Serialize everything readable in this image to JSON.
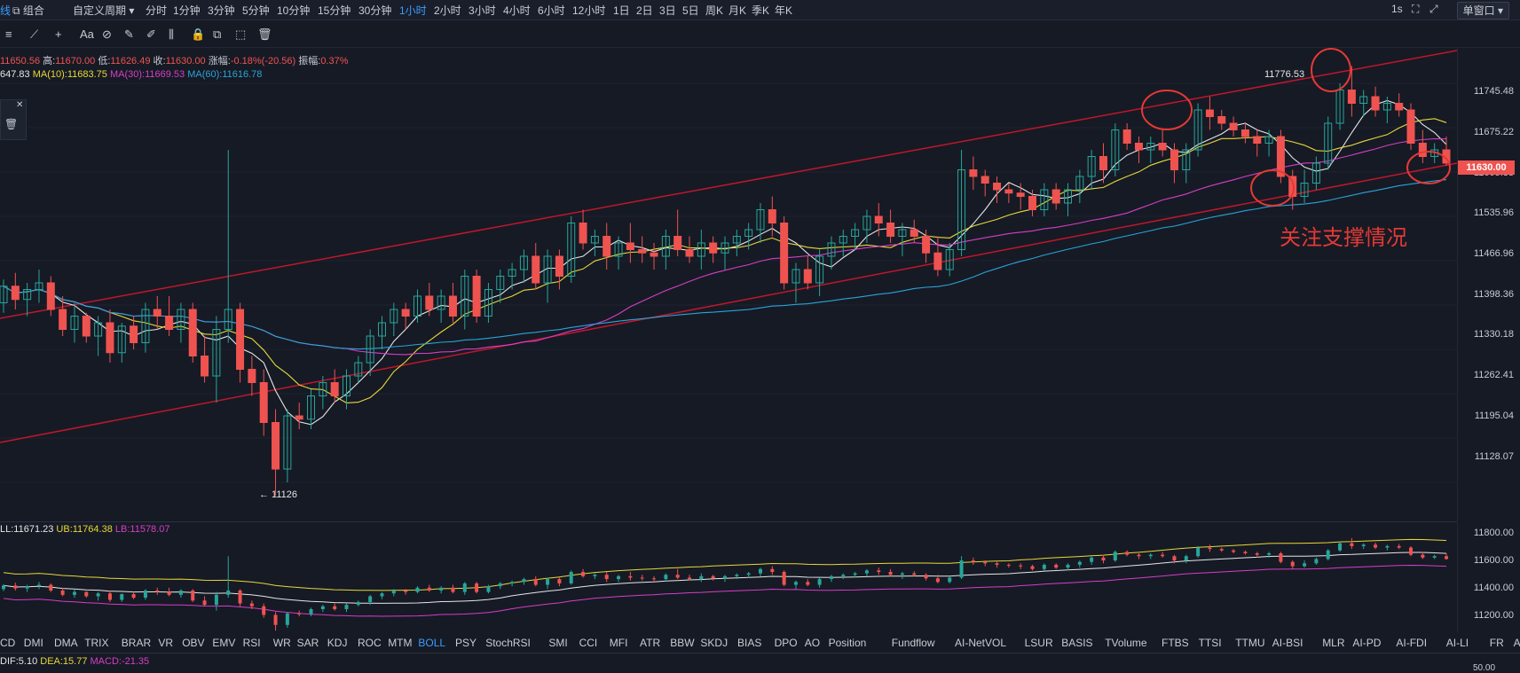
{
  "toolbar": {
    "left": [
      "线",
      "组合"
    ],
    "period_menu": "自定义周期",
    "periods": [
      "分时",
      "1分钟",
      "3分钟",
      "5分钟",
      "10分钟",
      "15分钟",
      "30分钟",
      "1小时",
      "2小时",
      "3小时",
      "4小时",
      "6小时",
      "12小时",
      "1日",
      "2日",
      "3日",
      "5日",
      "周K",
      "月K",
      "季K",
      "年K"
    ],
    "active_period": "1小时",
    "interval": "1s",
    "window_button": "单窗口"
  },
  "drawing_tools": [
    "≡",
    "⟋",
    "+",
    "Aa",
    "⊘",
    "✎",
    "✐",
    "⫼",
    "🔒",
    "⧉",
    "⬚",
    "🗑"
  ],
  "ohlc": {
    "open": "11650.56",
    "high_label": "高:",
    "high": "11670.00",
    "low_label": "低:",
    "low": "11626.49",
    "close_label": "收:",
    "close": "11630.00",
    "change_label": "涨幅:",
    "change": "-0.18%(-20.56)",
    "amp_label": "振幅:",
    "amp": "0.37%"
  },
  "ma": {
    "ma5": "647.83",
    "ma10": "MA(10):11683.75",
    "ma30": "MA(30):11669.53",
    "ma60": "MA(60):11616.78"
  },
  "annotations": {
    "high_label": "11776.53",
    "low_label": "← 11126",
    "note": "关注支撑情况"
  },
  "price_axis": {
    "ticks": [
      "11745.48",
      "11675.22",
      "11605.38",
      "11535.96",
      "11466.96",
      "11398.36",
      "11330.18",
      "11262.41",
      "11195.04",
      "11128.07"
    ],
    "current": "11630.00"
  },
  "boll": {
    "mid": "LL:11671.23",
    "ub": "UB:11764.38",
    "lb": "LB:11578.07",
    "ticks": [
      "11800.00",
      "11600.00",
      "11400.00",
      "11200.00"
    ]
  },
  "indicators": [
    "CD",
    "DMI",
    "DMA",
    "TRIX",
    "BRAR",
    "VR",
    "OBV",
    "EMV",
    "RSI",
    "WR",
    "SAR",
    "KDJ",
    "ROC",
    "MTM",
    "BOLL",
    "PSY",
    "StochRSI",
    "SMI",
    "CCI",
    "MFI",
    "ATR",
    "BBW",
    "SKDJ",
    "BIAS",
    "DPO",
    "AO",
    "Position",
    "Fundflow",
    "AI-NetVOL",
    "LSUR",
    "BASIS",
    "TVolume",
    "FTBS",
    "TTSI",
    "TTMU",
    "AI-BSI",
    "MLR",
    "AI-PD",
    "AI-FDI",
    "AI-LI",
    "FR",
    "AI-BST"
  ],
  "active_indicator": "BOLL",
  "macd": {
    "dif": "DIF:5.10",
    "dea": "DEA:15.77",
    "macd": "MACD:-21.35",
    "tick": "50.00"
  },
  "colors": {
    "up": "#26a69a",
    "down": "#ef5350",
    "ma5": "#e6e6e6",
    "ma10": "#e8d839",
    "ma30": "#d63ec6",
    "ma60": "#2aa4d8",
    "trend": "#c0172b",
    "accent": "#3b9cff"
  },
  "chart_data": {
    "type": "candlestick",
    "ylim": [
      11100,
      11800
    ],
    "candles": [
      [
        11420,
        11455,
        11405,
        11445
      ],
      [
        11445,
        11465,
        11410,
        11425
      ],
      [
        11425,
        11450,
        11400,
        11440
      ],
      [
        11440,
        11470,
        11420,
        11450
      ],
      [
        11450,
        11460,
        11400,
        11410
      ],
      [
        11410,
        11430,
        11370,
        11380
      ],
      [
        11380,
        11420,
        11360,
        11400
      ],
      [
        11400,
        11405,
        11360,
        11370
      ],
      [
        11370,
        11400,
        11340,
        11390
      ],
      [
        11390,
        11410,
        11330,
        11345
      ],
      [
        11345,
        11390,
        11330,
        11385
      ],
      [
        11385,
        11400,
        11350,
        11360
      ],
      [
        11360,
        11420,
        11345,
        11410
      ],
      [
        11410,
        11430,
        11380,
        11400
      ],
      [
        11400,
        11430,
        11370,
        11380
      ],
      [
        11380,
        11420,
        11360,
        11410
      ],
      [
        11410,
        11420,
        11330,
        11340
      ],
      [
        11340,
        11370,
        11300,
        11310
      ],
      [
        11310,
        11400,
        11270,
        11380
      ],
      [
        11380,
        11650,
        11360,
        11410
      ],
      [
        11410,
        11420,
        11300,
        11320
      ],
      [
        11320,
        11340,
        11280,
        11300
      ],
      [
        11300,
        11320,
        11220,
        11240
      ],
      [
        11240,
        11260,
        11130,
        11170
      ],
      [
        11170,
        11260,
        11150,
        11250
      ],
      [
        11250,
        11270,
        11230,
        11245
      ],
      [
        11245,
        11290,
        11230,
        11280
      ],
      [
        11280,
        11310,
        11260,
        11300
      ],
      [
        11300,
        11320,
        11270,
        11280
      ],
      [
        11280,
        11320,
        11260,
        11310
      ],
      [
        11310,
        11340,
        11300,
        11330
      ],
      [
        11330,
        11380,
        11310,
        11370
      ],
      [
        11370,
        11400,
        11350,
        11390
      ],
      [
        11390,
        11420,
        11370,
        11410
      ],
      [
        11410,
        11420,
        11380,
        11400
      ],
      [
        11400,
        11440,
        11390,
        11430
      ],
      [
        11430,
        11450,
        11400,
        11410
      ],
      [
        11410,
        11440,
        11390,
        11430
      ],
      [
        11430,
        11450,
        11390,
        11400
      ],
      [
        11400,
        11470,
        11380,
        11460
      ],
      [
        11460,
        11470,
        11390,
        11400
      ],
      [
        11400,
        11450,
        11390,
        11440
      ],
      [
        11440,
        11470,
        11420,
        11460
      ],
      [
        11460,
        11480,
        11440,
        11470
      ],
      [
        11470,
        11500,
        11450,
        11490
      ],
      [
        11490,
        11510,
        11440,
        11450
      ],
      [
        11450,
        11500,
        11420,
        11490
      ],
      [
        11490,
        11500,
        11440,
        11460
      ],
      [
        11460,
        11550,
        11450,
        11540
      ],
      [
        11540,
        11560,
        11500,
        11510
      ],
      [
        11510,
        11530,
        11490,
        11520
      ],
      [
        11520,
        11540,
        11470,
        11490
      ],
      [
        11490,
        11520,
        11470,
        11510
      ],
      [
        11510,
        11540,
        11480,
        11500
      ],
      [
        11500,
        11520,
        11480,
        11495
      ],
      [
        11495,
        11510,
        11470,
        11490
      ],
      [
        11490,
        11530,
        11470,
        11520
      ],
      [
        11520,
        11560,
        11490,
        11500
      ],
      [
        11500,
        11520,
        11480,
        11490
      ],
      [
        11490,
        11530,
        11470,
        11510
      ],
      [
        11510,
        11520,
        11480,
        11495
      ],
      [
        11495,
        11520,
        11470,
        11510
      ],
      [
        11510,
        11530,
        11490,
        11520
      ],
      [
        11520,
        11540,
        11500,
        11530
      ],
      [
        11530,
        11570,
        11510,
        11560
      ],
      [
        11560,
        11580,
        11520,
        11540
      ],
      [
        11540,
        11550,
        11440,
        11450
      ],
      [
        11450,
        11480,
        11420,
        11470
      ],
      [
        11470,
        11490,
        11440,
        11450
      ],
      [
        11450,
        11500,
        11430,
        11490
      ],
      [
        11490,
        11520,
        11470,
        11510
      ],
      [
        11510,
        11530,
        11490,
        11520
      ],
      [
        11520,
        11540,
        11500,
        11530
      ],
      [
        11530,
        11560,
        11510,
        11550
      ],
      [
        11550,
        11570,
        11520,
        11540
      ],
      [
        11540,
        11560,
        11510,
        11520
      ],
      [
        11520,
        11540,
        11490,
        11530
      ],
      [
        11530,
        11545,
        11510,
        11520
      ],
      [
        11520,
        11530,
        11480,
        11495
      ],
      [
        11495,
        11520,
        11460,
        11470
      ],
      [
        11470,
        11510,
        11460,
        11500
      ],
      [
        11500,
        11650,
        11490,
        11620
      ],
      [
        11620,
        11640,
        11590,
        11610
      ],
      [
        11610,
        11620,
        11580,
        11600
      ],
      [
        11600,
        11610,
        11570,
        11590
      ],
      [
        11590,
        11600,
        11570,
        11585
      ],
      [
        11585,
        11600,
        11560,
        11580
      ],
      [
        11580,
        11590,
        11550,
        11560
      ],
      [
        11560,
        11600,
        11550,
        11590
      ],
      [
        11590,
        11600,
        11560,
        11570
      ],
      [
        11570,
        11600,
        11550,
        11590
      ],
      [
        11590,
        11620,
        11570,
        11610
      ],
      [
        11610,
        11650,
        11590,
        11640
      ],
      [
        11640,
        11660,
        11600,
        11620
      ],
      [
        11620,
        11690,
        11610,
        11680
      ],
      [
        11680,
        11690,
        11650,
        11660
      ],
      [
        11660,
        11670,
        11630,
        11650
      ],
      [
        11650,
        11670,
        11630,
        11660
      ],
      [
        11660,
        11680,
        11640,
        11650
      ],
      [
        11650,
        11660,
        11600,
        11620
      ],
      [
        11620,
        11660,
        11600,
        11650
      ],
      [
        11650,
        11720,
        11640,
        11710
      ],
      [
        11710,
        11730,
        11680,
        11700
      ],
      [
        11700,
        11710,
        11680,
        11690
      ],
      [
        11690,
        11700,
        11670,
        11680
      ],
      [
        11680,
        11690,
        11660,
        11670
      ],
      [
        11670,
        11680,
        11640,
        11660
      ],
      [
        11660,
        11680,
        11640,
        11670
      ],
      [
        11670,
        11680,
        11600,
        11610
      ],
      [
        11610,
        11620,
        11560,
        11580
      ],
      [
        11580,
        11620,
        11570,
        11600
      ],
      [
        11600,
        11640,
        11590,
        11630
      ],
      [
        11630,
        11700,
        11620,
        11690
      ],
      [
        11690,
        11750,
        11680,
        11740
      ],
      [
        11740,
        11776,
        11700,
        11720
      ],
      [
        11720,
        11740,
        11700,
        11730
      ],
      [
        11730,
        11745,
        11700,
        11710
      ],
      [
        11710,
        11730,
        11690,
        11720
      ],
      [
        11720,
        11735,
        11700,
        11710
      ],
      [
        11710,
        11720,
        11650,
        11660
      ],
      [
        11660,
        11680,
        11630,
        11640
      ],
      [
        11640,
        11660,
        11630,
        11650
      ],
      [
        11650,
        11670,
        11626,
        11630
      ]
    ]
  }
}
